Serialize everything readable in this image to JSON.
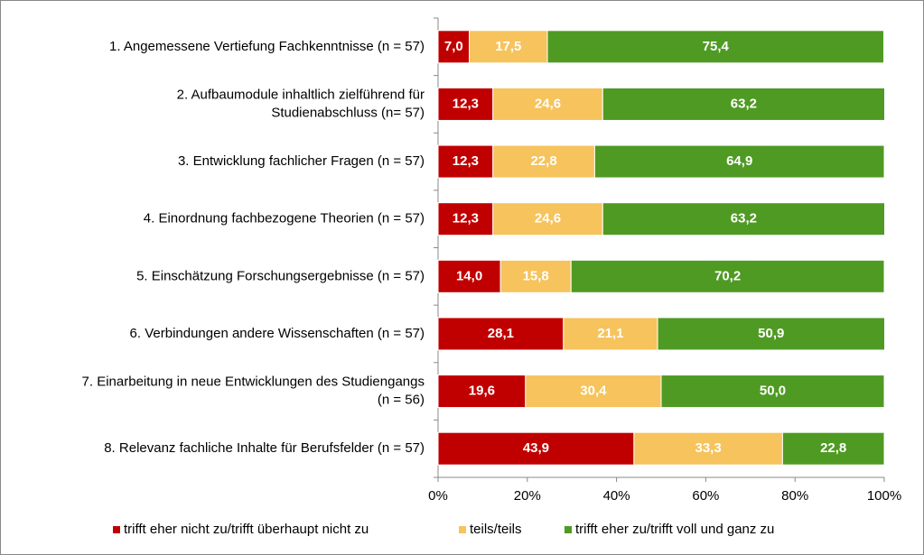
{
  "chart_data": {
    "type": "stacked_barh",
    "categories": [
      "1. Angemessene Vertiefung Fachkenntnisse (n = 57)",
      "2. Aufbaumodule inhaltlich zielführend für\nStudienabschluss (n= 57)",
      "3. Entwicklung fachlicher Fragen (n = 57)",
      "4. Einordnung fachbezogene Theorien (n = 57)",
      "5. Einschätzung Forschungsergebnisse (n = 57)",
      "6. Verbindungen andere Wissenschaften (n = 57)",
      "7. Einarbeitung in neue Entwicklungen des Studiengangs\n(n = 56)",
      "8. Relevanz fachliche Inhalte für Berufsfelder (n = 57)"
    ],
    "series": [
      {
        "name": "trifft eher nicht zu/trifft überhaupt nicht zu",
        "color": "#c00000",
        "values": [
          7.0,
          12.3,
          12.3,
          12.3,
          14.0,
          28.1,
          19.6,
          43.9
        ],
        "value_labels": [
          "7,0",
          "12,3",
          "12,3",
          "12,3",
          "14,0",
          "28,1",
          "19,6",
          "43,9"
        ]
      },
      {
        "name": "teils/teils",
        "color": "#f6c35c",
        "values": [
          17.5,
          24.6,
          22.8,
          24.6,
          15.8,
          21.1,
          30.4,
          33.3
        ],
        "value_labels": [
          "17,5",
          "24,6",
          "22,8",
          "24,6",
          "15,8",
          "21,1",
          "30,4",
          "33,3"
        ]
      },
      {
        "name": "trifft eher zu/trifft voll und ganz zu",
        "color": "#4f9a23",
        "values": [
          75.4,
          63.2,
          64.9,
          63.2,
          70.2,
          50.9,
          50.0,
          22.8
        ],
        "value_labels": [
          "75,4",
          "63,2",
          "64,9",
          "63,2",
          "70,2",
          "50,9",
          "50,0",
          "22,8"
        ]
      }
    ],
    "xlim": [
      0,
      100
    ],
    "xticks": [
      {
        "value": 0,
        "label": "0%"
      },
      {
        "value": 20,
        "label": "20%"
      },
      {
        "value": 40,
        "label": "40%"
      },
      {
        "value": 60,
        "label": "60%"
      },
      {
        "value": 80,
        "label": "80%"
      },
      {
        "value": 100,
        "label": "100%"
      }
    ],
    "grid": false,
    "legend": "bottom"
  }
}
